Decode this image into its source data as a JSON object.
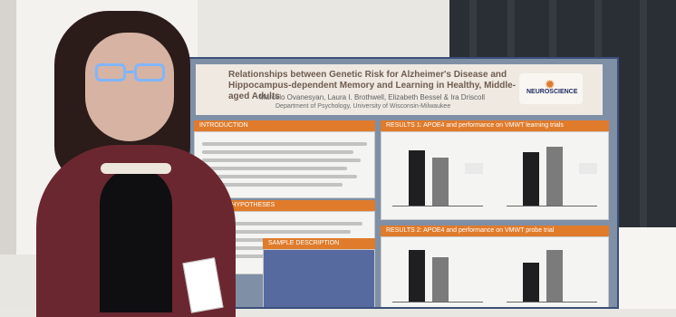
{
  "scene": {
    "poster": {
      "title": "Relationships between Genetic Risk for Alzheimer's Disease and Hippocampus-dependent Memory and Learning in Healthy, Middle-aged Adults",
      "authors": "Marcelo Ovanesyan, Laura I. Brothwell, Elizabeth Bessel & Ira Driscoll",
      "department": "Department of Psychology, University of Wisconsin-Milwaukee",
      "logo": {
        "text": "NEUROSCIENCE"
      },
      "sections": {
        "introduction": "INTRODUCTION",
        "results_top": "RESULTS 1: APOE4 and performance on VMWT learning trials",
        "results_bottom": "RESULTS 2: APOE4 and performance on VMWT probe trial",
        "methods": "AIMS AND HYPOTHESES",
        "sample": "SAMPLE DESCRIPTION"
      }
    }
  }
}
